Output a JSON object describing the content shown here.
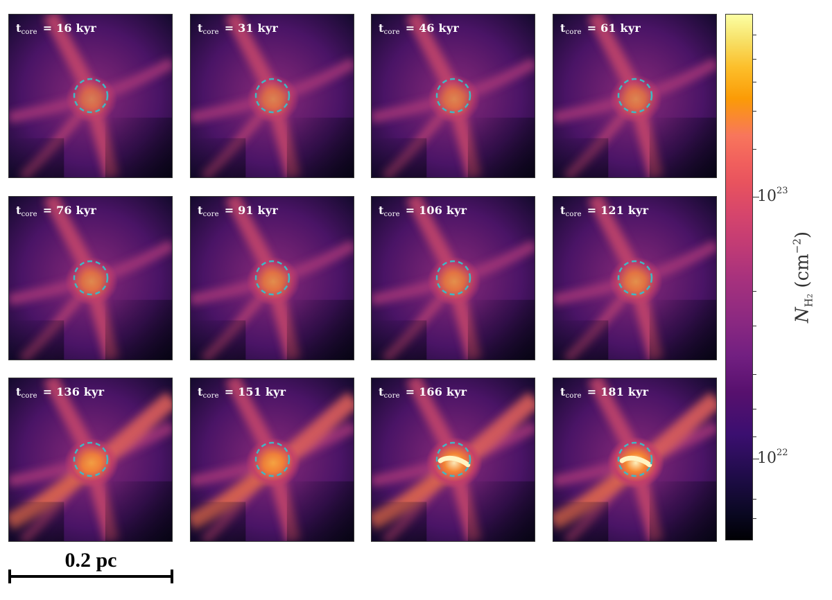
{
  "panels": [
    {
      "label": "t",
      "subscript": "core",
      "value": "= 16 kyr",
      "core_brightness": 0.55
    },
    {
      "label": "t",
      "subscript": "core",
      "value": "= 31 kyr",
      "core_brightness": 0.6
    },
    {
      "label": "t",
      "subscript": "core",
      "value": "= 46 kyr",
      "core_brightness": 0.62
    },
    {
      "label": "t",
      "subscript": "core",
      "value": "= 61 kyr",
      "core_brightness": 0.62
    },
    {
      "label": "t",
      "subscript": "core",
      "value": "= 76 kyr",
      "core_brightness": 0.65
    },
    {
      "label": "t",
      "subscript": "core",
      "value": "= 91 kyr",
      "core_brightness": 0.68
    },
    {
      "label": "t",
      "subscript": "core",
      "value": "= 106 kyr",
      "core_brightness": 0.7
    },
    {
      "label": "t",
      "subscript": "core",
      "value": "= 121 kyr",
      "core_brightness": 0.7
    },
    {
      "label": "t",
      "subscript": "core",
      "value": "= 136 kyr",
      "core_brightness": 0.75
    },
    {
      "label": "t",
      "subscript": "core",
      "value": "= 151 kyr",
      "core_brightness": 0.8
    },
    {
      "label": "t",
      "subscript": "core",
      "value": "= 166 kyr",
      "core_brightness": 0.9
    },
    {
      "label": "t",
      "subscript": "core",
      "value": "= 181 kyr",
      "core_brightness": 0.95
    }
  ],
  "colorbar": {
    "label_symbol": "N",
    "label_subscript": "H",
    "label_subscript2": "2",
    "label_units": "(cm",
    "label_units_sup": "−2",
    "label_units_close": ")",
    "tick_major_labels": [
      {
        "base": "10",
        "exp": "23"
      },
      {
        "base": "10",
        "exp": "22"
      }
    ],
    "colormap": "inferno"
  },
  "scalebar": {
    "label": "0.2 pc"
  },
  "colors": {
    "core_circle": "#3fb8c4"
  }
}
